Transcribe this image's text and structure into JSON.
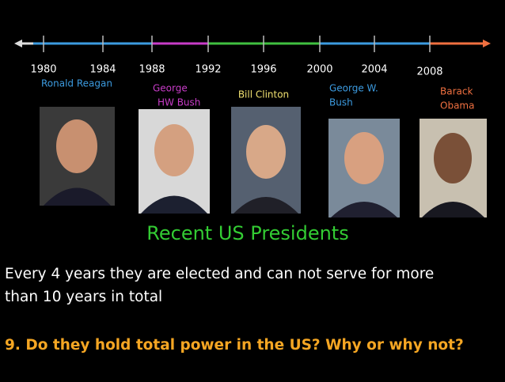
{
  "timeline": {
    "years": [
      "1980",
      "1984",
      "1988",
      "1992",
      "1996",
      "2000",
      "2004",
      "2008"
    ]
  },
  "presidents": [
    {
      "lines": [
        "Ronald Reagan"
      ]
    },
    {
      "lines": [
        "George",
        "HW Bush"
      ]
    },
    {
      "lines": [
        "Bill Clinton"
      ]
    },
    {
      "lines": [
        "George W.",
        "Bush"
      ]
    },
    {
      "lines": [
        "Barack",
        "Obama"
      ]
    }
  ],
  "title": "Recent US Presidents",
  "body": [
    "Every 4 years they are elected and can not serve for more",
    "than 10 years in total"
  ],
  "question": "9. Do they hold total power in the US?  Why or why not?"
}
